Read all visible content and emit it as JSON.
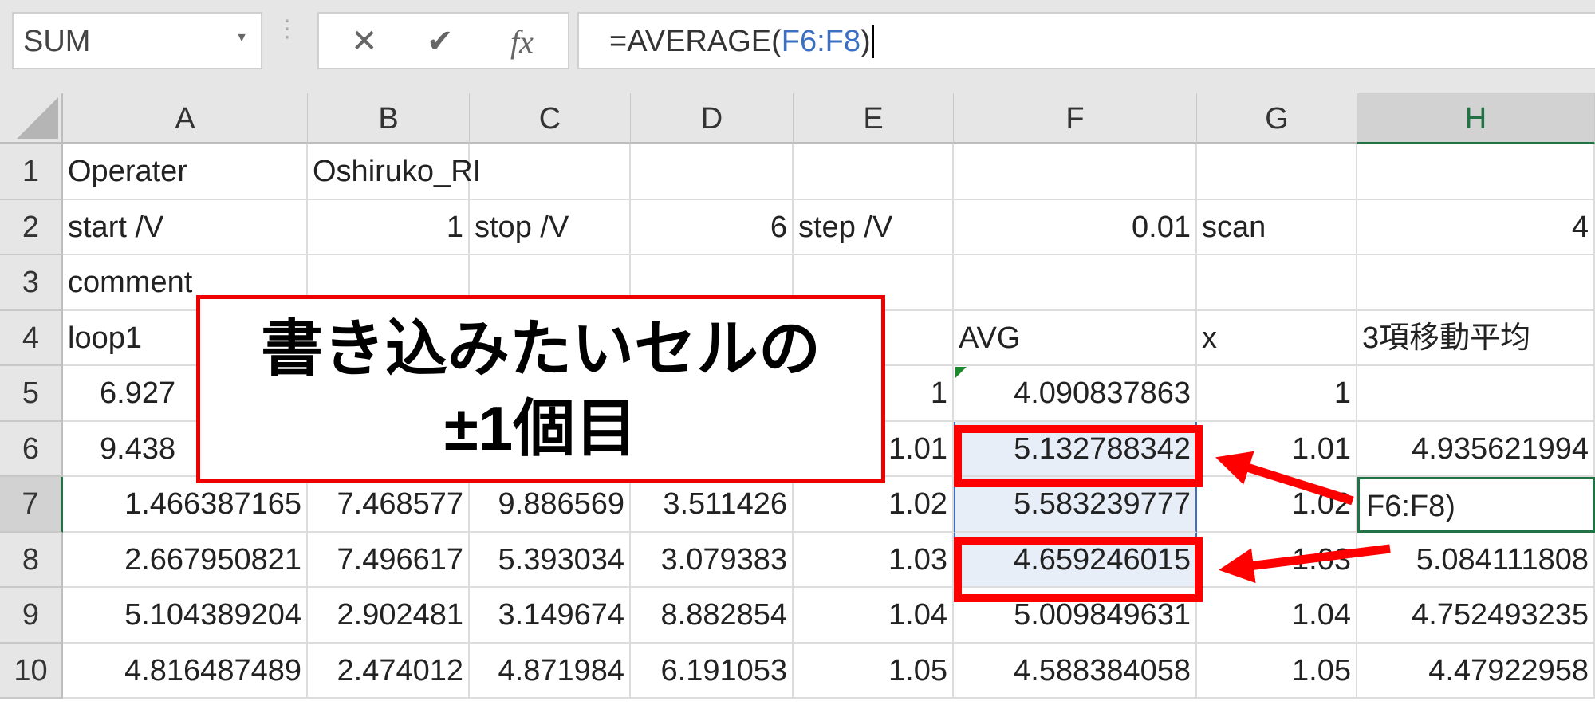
{
  "namebox": {
    "value": "SUM",
    "dropdown_icon": "caret-down-icon"
  },
  "formula_bar": {
    "cancel": "✕",
    "enter": "✔",
    "fx": "fx",
    "prefix": "=AVERAGE(",
    "ref": "F6:F8",
    "suffix": ")"
  },
  "columns": [
    "A",
    "B",
    "C",
    "D",
    "E",
    "F",
    "G",
    "H"
  ],
  "selected_column": "H",
  "selected_row": "7",
  "rows": [
    {
      "n": "1",
      "cells": [
        "Operater",
        "Oshiruko_RI",
        "",
        "",
        "",
        "",
        "",
        ""
      ]
    },
    {
      "n": "2",
      "cells": [
        "start /V",
        "1",
        "stop /V",
        "6",
        "step /V",
        "0.01",
        "scan",
        "4"
      ]
    },
    {
      "n": "3",
      "cells": [
        "comment",
        "",
        "",
        "",
        "",
        "",
        "",
        ""
      ]
    },
    {
      "n": "4",
      "cells": [
        "loop1",
        "",
        "",
        "",
        "",
        "AVG",
        "x",
        "3項移動平均"
      ]
    },
    {
      "n": "5",
      "cells": [
        "6.927",
        "",
        "",
        "",
        "1",
        "4.090837863",
        "1",
        ""
      ]
    },
    {
      "n": "6",
      "cells": [
        "9.438",
        "",
        "",
        "",
        "1.01",
        "5.132788342",
        "1.01",
        "4.935621994"
      ]
    },
    {
      "n": "7",
      "cells": [
        "1.466387165",
        "7.468577",
        "9.886569",
        "3.511426",
        "1.02",
        "5.583239777",
        "1.02",
        "F6:F8)"
      ]
    },
    {
      "n": "8",
      "cells": [
        "2.667950821",
        "7.496617",
        "5.393034",
        "3.079383",
        "1.03",
        "4.659246015",
        "1.03",
        "5.084111808"
      ]
    },
    {
      "n": "9",
      "cells": [
        "5.104389204",
        "2.902481",
        "3.149674",
        "8.882854",
        "1.04",
        "5.009849631",
        "1.04",
        "4.752493235"
      ]
    },
    {
      "n": "10",
      "cells": [
        "4.816487489",
        "2.474012",
        "4.871984",
        "6.191053",
        "1.05",
        "4.588384058",
        "1.05",
        "4.47922958"
      ]
    }
  ],
  "annotation": {
    "line1": "書き込みたいセルの",
    "line2": "±1個目"
  },
  "colors": {
    "accent_red": "#ff0000",
    "excel_green": "#217346",
    "ref_blue": "#3a6fc4"
  }
}
